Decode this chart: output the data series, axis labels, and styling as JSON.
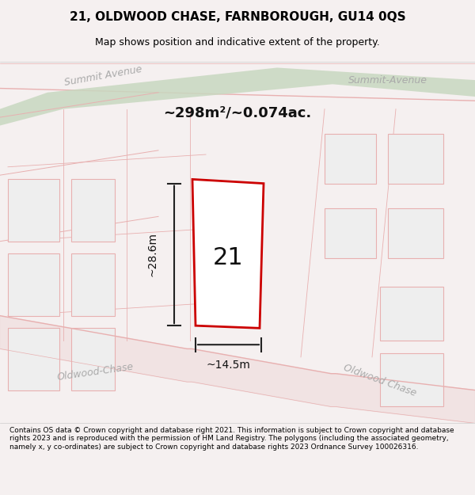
{
  "title_line1": "21, OLDWOOD CHASE, FARNBOROUGH, GU14 0QS",
  "title_line2": "Map shows position and indicative extent of the property.",
  "area_label": "~298m²/~0.074ac.",
  "plot_number": "21",
  "width_label": "~14.5m",
  "height_label": "~28.6m",
  "road_label_left": "Oldwood-Chase",
  "road_label_right": "Oldwood Chase",
  "road_label_top_left": "Summit Avenue",
  "road_label_top_right": "Summit-Avenue",
  "footer_text": "Contains OS data © Crown copyright and database right 2021. This information is subject to Crown copyright and database rights 2023 and is reproduced with the permission of HM Land Registry. The polygons (including the associated geometry, namely x, y co-ordinates) are subject to Crown copyright and database rights 2023 Ordnance Survey 100026316.",
  "bg_color": "#f5f0f0",
  "map_bg": "#f7f2f2",
  "road_fill": "#e8d8d8",
  "road_stroke": "#e8b0b0",
  "green_strip_color": "#c8d8c0",
  "plot_stroke": "#cc0000",
  "plot_fill": "#ffffff",
  "dim_line_color": "#222222",
  "title_bg": "#f0eeee",
  "footer_bg": "#ffffff"
}
